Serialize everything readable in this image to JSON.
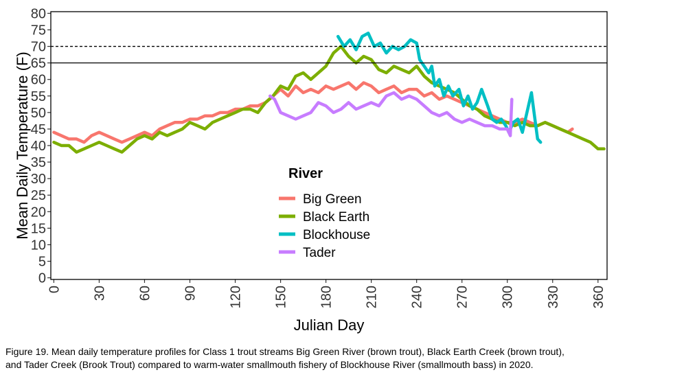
{
  "chart_data": {
    "type": "line",
    "xlabel": "Julian Day",
    "ylabel": "Mean Daily Temperature (F)",
    "xlim": [
      -2,
      366
    ],
    "ylim": [
      -0.5,
      80.5
    ],
    "x_ticks": [
      0,
      30,
      60,
      90,
      120,
      150,
      180,
      210,
      240,
      270,
      300,
      330,
      360
    ],
    "y_ticks": [
      0,
      5,
      10,
      15,
      20,
      25,
      30,
      35,
      40,
      45,
      50,
      55,
      60,
      65,
      70,
      75,
      80
    ],
    "reference_lines": [
      {
        "y": 70,
        "style": "dashed"
      },
      {
        "y": 65,
        "style": "solid"
      }
    ],
    "grid": false,
    "legend": {
      "title": "River",
      "placement": "center-inside"
    },
    "series": [
      {
        "name": "Big Green",
        "color": "#F8766D",
        "points": [
          [
            0,
            44
          ],
          [
            5,
            43
          ],
          [
            10,
            42
          ],
          [
            15,
            42
          ],
          [
            20,
            41
          ],
          [
            25,
            43
          ],
          [
            30,
            44
          ],
          [
            35,
            43
          ],
          [
            40,
            42
          ],
          [
            45,
            41
          ],
          [
            50,
            42
          ],
          [
            55,
            43
          ],
          [
            60,
            44
          ],
          [
            65,
            43
          ],
          [
            70,
            45
          ],
          [
            75,
            46
          ],
          [
            80,
            47
          ],
          [
            85,
            47
          ],
          [
            90,
            48
          ],
          [
            95,
            48
          ],
          [
            100,
            49
          ],
          [
            105,
            49
          ],
          [
            110,
            50
          ],
          [
            115,
            50
          ],
          [
            120,
            51
          ],
          [
            125,
            51
          ],
          [
            130,
            52
          ],
          [
            135,
            52
          ],
          [
            140,
            53
          ],
          [
            145,
            55
          ],
          [
            150,
            57
          ],
          [
            155,
            55
          ],
          [
            160,
            58
          ],
          [
            165,
            56
          ],
          [
            170,
            57
          ],
          [
            175,
            56
          ],
          [
            180,
            58
          ],
          [
            185,
            57
          ],
          [
            190,
            58
          ],
          [
            195,
            59
          ],
          [
            200,
            57
          ],
          [
            205,
            59
          ],
          [
            210,
            58
          ],
          [
            215,
            56
          ],
          [
            220,
            57
          ],
          [
            225,
            58
          ],
          [
            230,
            56
          ],
          [
            235,
            57
          ],
          [
            240,
            57
          ],
          [
            245,
            55
          ],
          [
            250,
            56
          ],
          [
            255,
            54
          ],
          [
            260,
            55
          ],
          [
            265,
            54
          ],
          [
            270,
            53
          ],
          [
            275,
            52
          ],
          [
            280,
            51
          ],
          [
            285,
            50
          ],
          [
            290,
            49
          ],
          [
            295,
            48
          ],
          [
            300,
            47
          ],
          [
            305,
            47
          ],
          [
            310,
            48
          ],
          [
            315,
            47
          ],
          [
            320,
            46
          ],
          [
            325,
            47
          ],
          [
            330,
            46
          ],
          [
            335,
            45
          ],
          [
            340,
            44
          ],
          [
            343,
            45
          ]
        ]
      },
      {
        "name": "Black Earth",
        "color": "#7CAE00",
        "points": [
          [
            0,
            41
          ],
          [
            5,
            40
          ],
          [
            10,
            40
          ],
          [
            15,
            38
          ],
          [
            20,
            39
          ],
          [
            25,
            40
          ],
          [
            30,
            41
          ],
          [
            35,
            40
          ],
          [
            40,
            39
          ],
          [
            45,
            38
          ],
          [
            50,
            40
          ],
          [
            55,
            42
          ],
          [
            60,
            43
          ],
          [
            65,
            42
          ],
          [
            70,
            44
          ],
          [
            75,
            43
          ],
          [
            80,
            44
          ],
          [
            85,
            45
          ],
          [
            90,
            47
          ],
          [
            95,
            46
          ],
          [
            100,
            45
          ],
          [
            105,
            47
          ],
          [
            110,
            48
          ],
          [
            115,
            49
          ],
          [
            120,
            50
          ],
          [
            125,
            51
          ],
          [
            130,
            51
          ],
          [
            135,
            50
          ],
          [
            140,
            53
          ],
          [
            145,
            55
          ],
          [
            150,
            58
          ],
          [
            155,
            57
          ],
          [
            160,
            61
          ],
          [
            165,
            62
          ],
          [
            170,
            60
          ],
          [
            175,
            62
          ],
          [
            180,
            64
          ],
          [
            185,
            68
          ],
          [
            190,
            70
          ],
          [
            195,
            67
          ],
          [
            200,
            65
          ],
          [
            205,
            67
          ],
          [
            210,
            66
          ],
          [
            215,
            63
          ],
          [
            220,
            62
          ],
          [
            225,
            64
          ],
          [
            230,
            63
          ],
          [
            235,
            62
          ],
          [
            240,
            64
          ],
          [
            245,
            61
          ],
          [
            250,
            59
          ],
          [
            255,
            58
          ],
          [
            260,
            57
          ],
          [
            265,
            56
          ],
          [
            270,
            54
          ],
          [
            275,
            52
          ],
          [
            280,
            51
          ],
          [
            285,
            49
          ],
          [
            290,
            48
          ],
          [
            295,
            47
          ],
          [
            300,
            47
          ],
          [
            305,
            46
          ],
          [
            310,
            47
          ],
          [
            315,
            46
          ],
          [
            320,
            46
          ],
          [
            325,
            47
          ],
          [
            330,
            46
          ],
          [
            335,
            45
          ],
          [
            340,
            44
          ],
          [
            345,
            43
          ],
          [
            350,
            42
          ],
          [
            355,
            41
          ],
          [
            360,
            39
          ],
          [
            364,
            39
          ]
        ]
      },
      {
        "name": "Blockhouse",
        "color": "#00BFC4",
        "points": [
          [
            188,
            73
          ],
          [
            192,
            70
          ],
          [
            196,
            72
          ],
          [
            200,
            69
          ],
          [
            204,
            73
          ],
          [
            208,
            74
          ],
          [
            212,
            70
          ],
          [
            216,
            71
          ],
          [
            220,
            68
          ],
          [
            224,
            70
          ],
          [
            228,
            69
          ],
          [
            232,
            70
          ],
          [
            236,
            72
          ],
          [
            240,
            71
          ],
          [
            242,
            66
          ],
          [
            245,
            64
          ],
          [
            248,
            62
          ],
          [
            250,
            64
          ],
          [
            252,
            58
          ],
          [
            255,
            60
          ],
          [
            258,
            55
          ],
          [
            261,
            58
          ],
          [
            264,
            55
          ],
          [
            268,
            57
          ],
          [
            271,
            52
          ],
          [
            274,
            55
          ],
          [
            277,
            51
          ],
          [
            280,
            53
          ],
          [
            283,
            57
          ],
          [
            287,
            52
          ],
          [
            290,
            48
          ],
          [
            293,
            47
          ],
          [
            296,
            48
          ],
          [
            299,
            46
          ],
          [
            301,
            44
          ],
          [
            304,
            47
          ],
          [
            307,
            48
          ],
          [
            310,
            44
          ],
          [
            313,
            50
          ],
          [
            316,
            56
          ],
          [
            318,
            49
          ],
          [
            320,
            42
          ],
          [
            322,
            41
          ]
        ]
      },
      {
        "name": "Tader",
        "color": "#C77CFF",
        "points": [
          [
            143,
            55
          ],
          [
            146,
            54
          ],
          [
            150,
            50
          ],
          [
            155,
            49
          ],
          [
            160,
            48
          ],
          [
            165,
            49
          ],
          [
            170,
            50
          ],
          [
            175,
            53
          ],
          [
            180,
            52
          ],
          [
            185,
            50
          ],
          [
            190,
            51
          ],
          [
            195,
            53
          ],
          [
            200,
            51
          ],
          [
            205,
            52
          ],
          [
            210,
            53
          ],
          [
            215,
            52
          ],
          [
            220,
            55
          ],
          [
            225,
            56
          ],
          [
            230,
            54
          ],
          [
            235,
            55
          ],
          [
            240,
            54
          ],
          [
            245,
            52
          ],
          [
            250,
            50
          ],
          [
            255,
            49
          ],
          [
            260,
            50
          ],
          [
            265,
            48
          ],
          [
            270,
            47
          ],
          [
            275,
            48
          ],
          [
            280,
            47
          ],
          [
            285,
            46
          ],
          [
            290,
            46
          ],
          [
            295,
            45
          ],
          [
            300,
            45
          ],
          [
            302,
            43
          ],
          [
            303,
            54
          ]
        ]
      }
    ]
  },
  "caption": {
    "line1": "Figure 19. Mean daily temperature profiles for Class 1 trout streams Big Green River (brown trout), Black Earth Creek (brown trout),",
    "line2": "and Tader Creek (Brook Trout) compared to warm-water smallmouth fishery of Blockhouse River (smallmouth bass) in 2020."
  }
}
